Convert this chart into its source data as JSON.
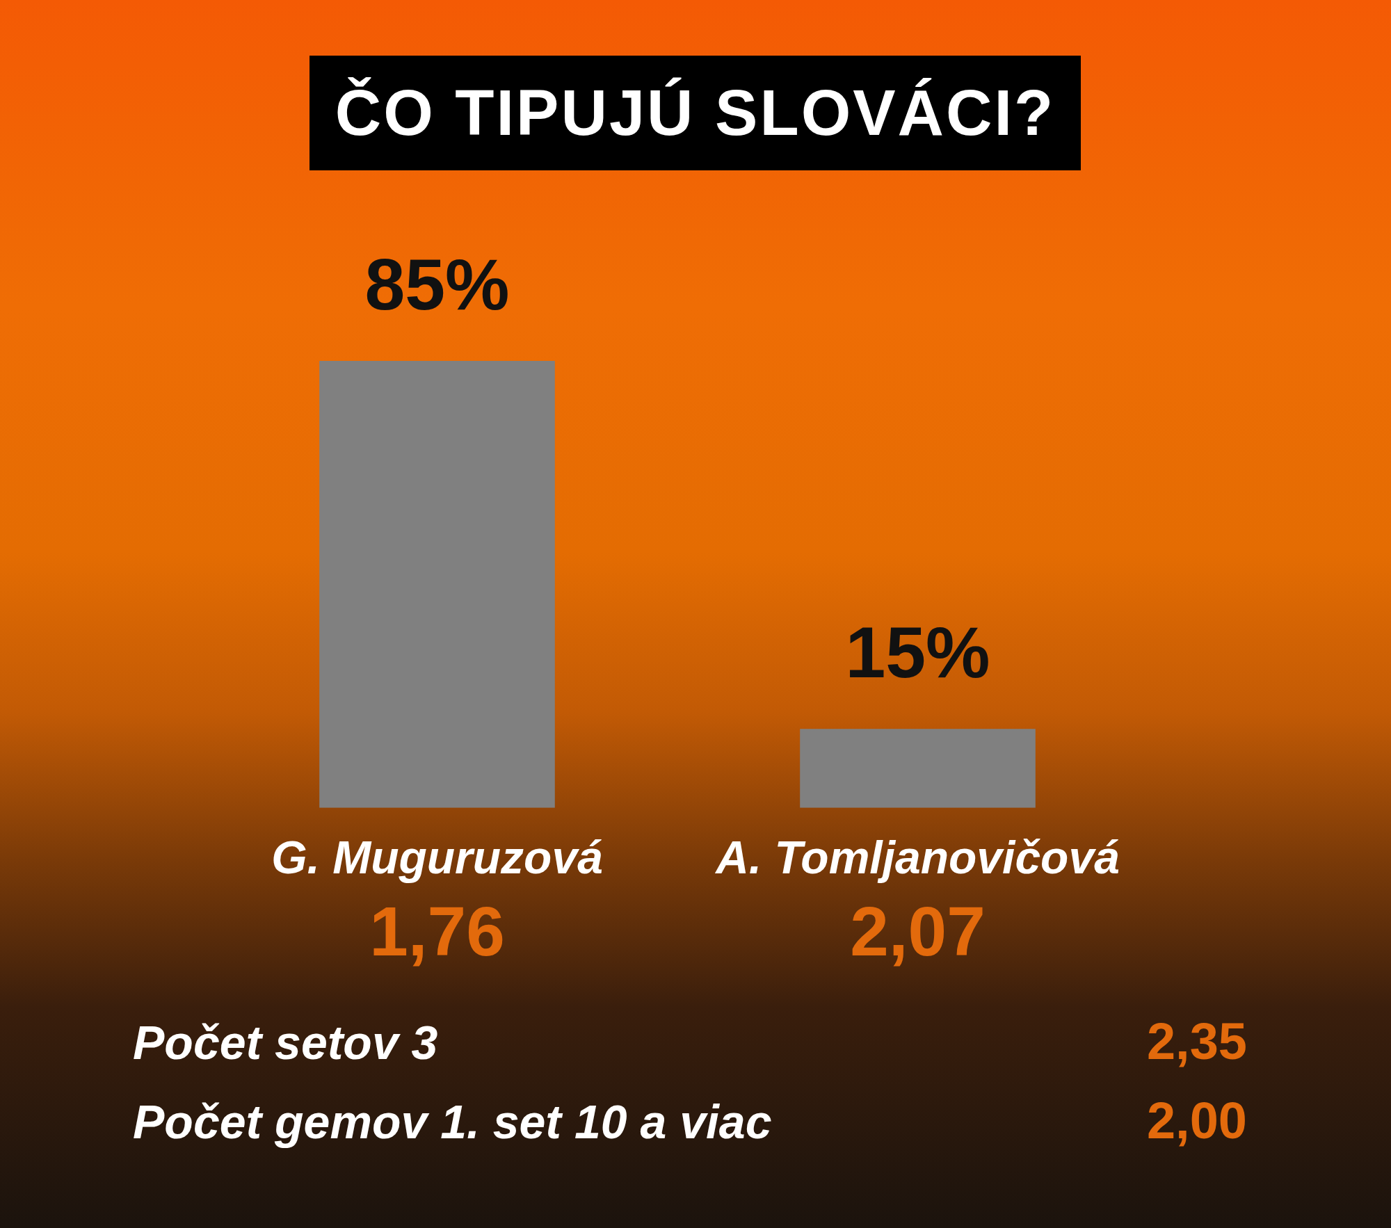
{
  "chart_data": {
    "type": "bar",
    "title": "ČO TIPUJÚ SLOVÁCI?",
    "categories": [
      "G. Muguruzová",
      "A. Tomljanovičová"
    ],
    "values": [
      85,
      15
    ],
    "value_labels": [
      "85%",
      "15%"
    ],
    "color": "#808080",
    "annotations": [
      "1,76",
      "2,07",
      "Počet setov 3",
      "2,35",
      "Počet gemov 1. set 10 a viac",
      "2,00"
    ]
  }
}
